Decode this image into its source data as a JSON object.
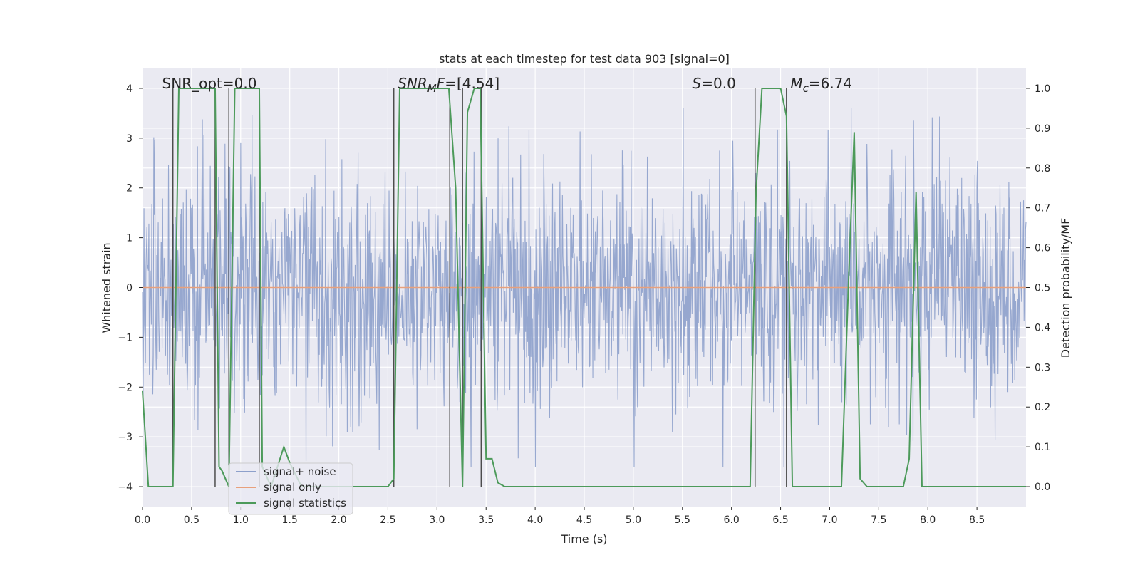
{
  "chart_data": {
    "type": "line",
    "title": "stats at each timestep for test data 903 [signal=0]",
    "xlabel": "Time (s)",
    "ylabel": "Whitened strain",
    "y2label": "Detection probability/MF",
    "xlim": [
      0,
      9.0
    ],
    "ylim": [
      -4.4,
      4.4
    ],
    "y2lim": [
      -0.05,
      1.05
    ],
    "xticks": [
      0.0,
      0.5,
      1.0,
      1.5,
      2.0,
      2.5,
      3.0,
      3.5,
      4.0,
      4.5,
      5.0,
      5.5,
      6.0,
      6.5,
      7.0,
      7.5,
      8.0,
      8.5
    ],
    "xtick_labels": [
      "0.0",
      "0.5",
      "1.0",
      "1.5",
      "2.0",
      "2.5",
      "3.0",
      "3.5",
      "4.0",
      "4.5",
      "5.0",
      "5.5",
      "6.0",
      "6.5",
      "7.0",
      "7.5",
      "8.0",
      "8.5"
    ],
    "yticks": [
      4,
      3,
      2,
      1,
      0,
      -1,
      -2,
      -3,
      -4
    ],
    "ytick_labels": [
      "4",
      "3",
      "2",
      "1",
      "0",
      "−1",
      "−2",
      "−3",
      "−4"
    ],
    "y2ticks": [
      1.0,
      0.9,
      0.8,
      0.7,
      0.6,
      0.5,
      0.4,
      0.3,
      0.2,
      0.1,
      0.0
    ],
    "y2tick_labels": [
      "1.0",
      "0.9",
      "0.8",
      "0.7",
      "0.6",
      "0.5",
      "0.4",
      "0.3",
      "0.2",
      "0.1",
      "0.0"
    ],
    "annotations": [
      {
        "text": "SNR_opt=0.0",
        "x": 0.2
      },
      {
        "text": "SNR_MF=[4.54]",
        "x": 2.6
      },
      {
        "text": "S=0.0",
        "x": 5.6
      },
      {
        "text": "M_c=6.74",
        "x": 6.6
      }
    ],
    "vlines": [
      0.31,
      0.74,
      0.88,
      1.19,
      2.56,
      3.13,
      3.26,
      3.45,
      6.24,
      6.56
    ],
    "vline_range": [
      -4.0,
      4.0
    ],
    "series": [
      {
        "name": "signal+ noise",
        "color": "#8da0cb",
        "style": "dense noise, envelope approx ±1.6 with spikes to about ±3.6",
        "sample_count": 1800,
        "typical_amplitude": 1.6,
        "max_amplitude": 3.6
      },
      {
        "name": "signal only",
        "color": "#e8a07c",
        "x": [
          0.0,
          9.0
        ],
        "y": [
          0.0,
          0.0
        ]
      },
      {
        "name": "signal statistics",
        "color": "#4c9a5a",
        "axis": "right",
        "x": [
          0.0,
          0.06,
          0.12,
          0.25,
          0.31,
          0.37,
          0.44,
          0.56,
          0.69,
          0.74,
          0.78,
          0.81,
          0.88,
          0.94,
          1.0,
          1.12,
          1.19,
          1.22,
          1.31,
          1.44,
          1.5,
          1.62,
          2.31,
          2.5,
          2.56,
          2.62,
          3.0,
          3.12,
          3.19,
          3.26,
          3.31,
          3.38,
          3.44,
          3.5,
          3.56,
          3.62,
          3.69,
          6.19,
          6.25,
          6.31,
          6.38,
          6.5,
          6.56,
          6.62,
          6.69,
          7.12,
          7.19,
          7.25,
          7.31,
          7.38,
          7.75,
          7.81,
          7.88,
          7.94,
          8.0,
          9.0
        ],
        "y": [
          0.24,
          0.0,
          0.0,
          0.0,
          0.0,
          1.0,
          1.0,
          1.0,
          1.0,
          1.0,
          0.05,
          0.04,
          0.0,
          1.0,
          1.0,
          1.0,
          1.0,
          0.05,
          0.0,
          0.1,
          0.06,
          0.0,
          0.0,
          0.0,
          0.02,
          1.0,
          1.0,
          1.0,
          0.75,
          0.0,
          0.94,
          1.0,
          1.0,
          0.07,
          0.07,
          0.01,
          0.0,
          0.0,
          0.74,
          1.0,
          1.0,
          1.0,
          0.93,
          0.0,
          0.0,
          0.0,
          0.5,
          0.89,
          0.02,
          0.0,
          0.0,
          0.07,
          0.74,
          0.0,
          0.0,
          0.0
        ]
      }
    ],
    "legend": {
      "position": "lower-left",
      "entries": [
        "signal+ noise",
        "signal only",
        "signal statistics"
      ]
    },
    "grid": true,
    "colors": {
      "plot_background": "#eaeaf2",
      "grid": "#ffffff",
      "vline": "#4d4d4d",
      "text": "#262626"
    }
  }
}
